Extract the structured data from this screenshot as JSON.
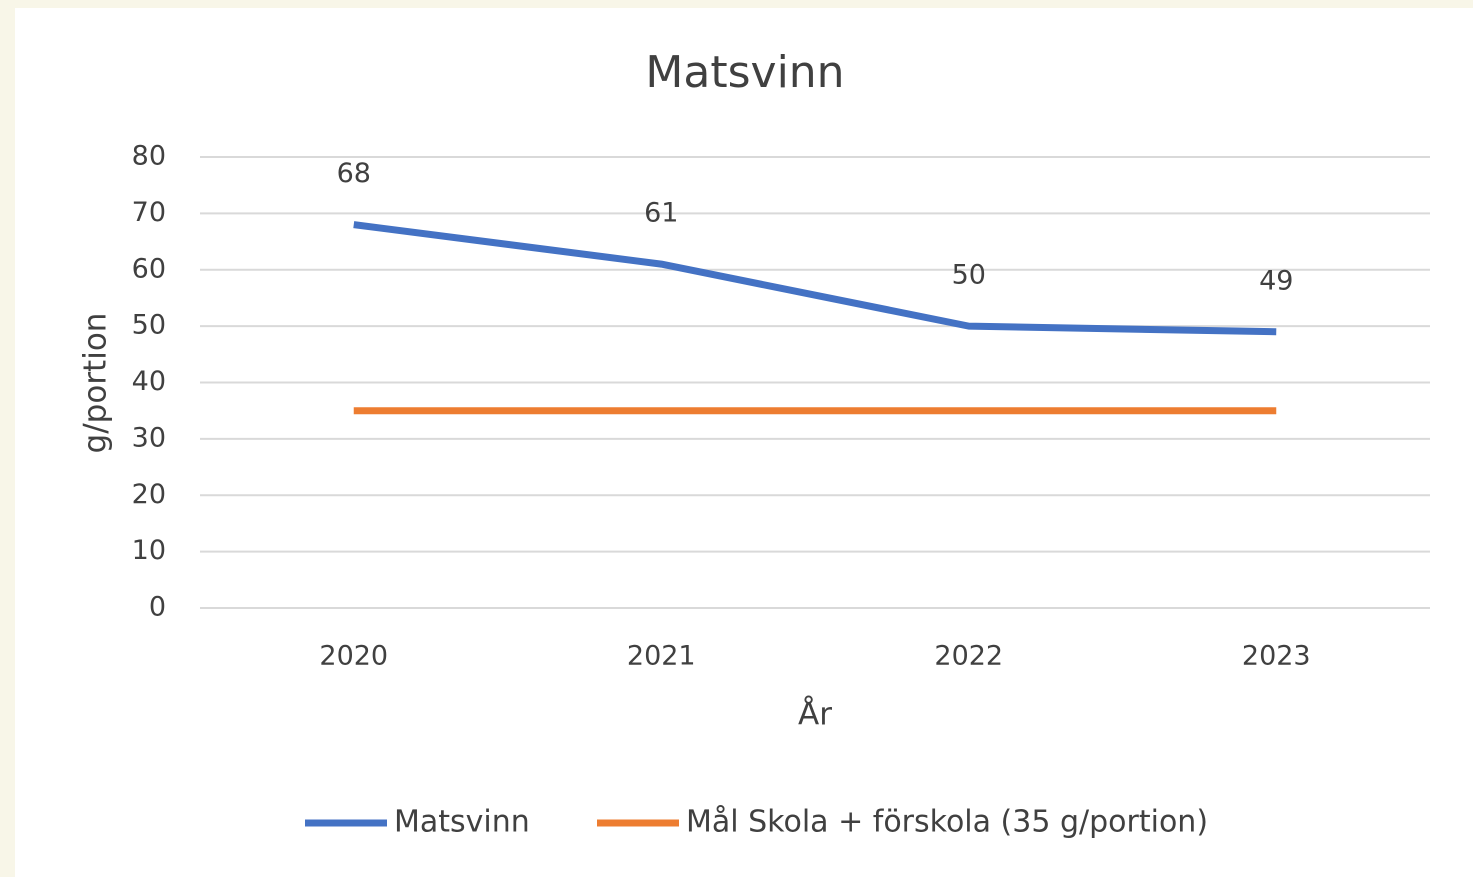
{
  "chart_data": {
    "type": "line",
    "title": "Matsvinn",
    "x_label": "År",
    "y_label": "g/portion",
    "categories": [
      "2020",
      "2021",
      "2022",
      "2023"
    ],
    "series": [
      {
        "name": "Matsvinn",
        "color": "#4472c4",
        "values": [
          68,
          61,
          50,
          49
        ],
        "data_labels": true
      },
      {
        "name": "Mål Skola + förskola (35 g/portion)",
        "color": "#ed7d31",
        "values": [
          35,
          35,
          35,
          35
        ],
        "data_labels": false
      }
    ],
    "ylim": [
      0,
      80
    ],
    "yticks": [
      0,
      10,
      20,
      30,
      40,
      50,
      60,
      70,
      80
    ],
    "grid": true,
    "legend": "bottom"
  }
}
